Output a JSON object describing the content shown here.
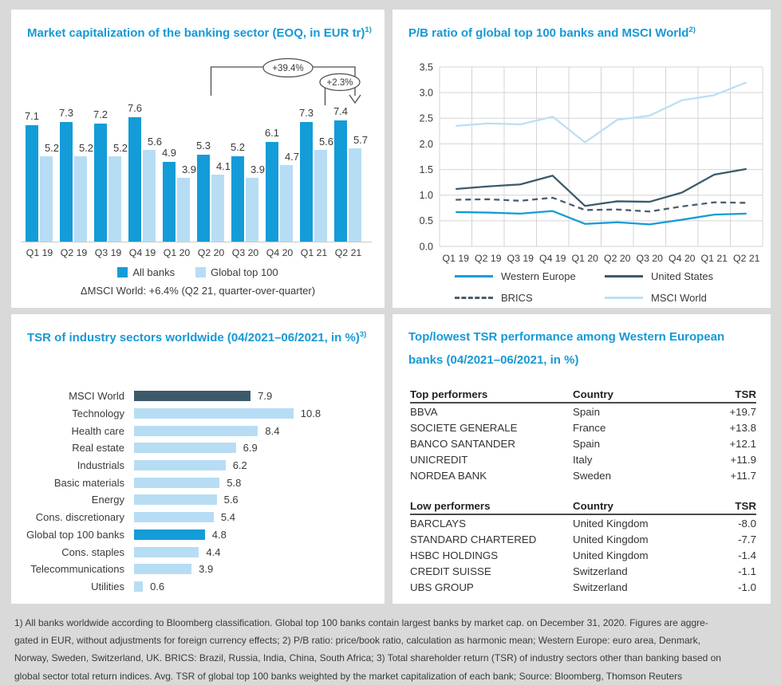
{
  "colors": {
    "accent_blue": "#149CD8",
    "light_blue": "#B7DDF4",
    "dark_navy": "#3D5A6B",
    "brics_gray": "#4A5D6C",
    "msci_light": "#BCDFF4",
    "grid_gray": "#D4D4D4",
    "axis_gray": "#C9C9C9",
    "annotation_gray": "#4D4D4D",
    "title_blue": "#1699D6",
    "text_dark": "#3A3A3A",
    "page_bg": "#D9D9D9",
    "panel_bg": "#FFFFFF"
  },
  "chart_data": [
    {
      "id": "market_cap",
      "type": "bar",
      "title": "Market capitalization of the banking sector (EOQ, in EUR tr)",
      "sup": "1)",
      "categories": [
        "Q1 19",
        "Q2 19",
        "Q3 19",
        "Q4 19",
        "Q1 20",
        "Q2 20",
        "Q3 20",
        "Q4 20",
        "Q1 21",
        "Q2 21"
      ],
      "series": [
        {
          "name": "All banks",
          "color_key": "accent_blue",
          "values": [
            7.1,
            7.3,
            7.2,
            7.6,
            4.9,
            5.3,
            5.2,
            6.1,
            7.3,
            7.4
          ]
        },
        {
          "name": "Global top 100",
          "color_key": "light_blue",
          "values": [
            5.2,
            5.2,
            5.2,
            5.6,
            3.9,
            4.1,
            3.9,
            4.7,
            5.6,
            5.7
          ]
        }
      ],
      "annotations": [
        {
          "label": "+39.4%",
          "from": "Q2 20",
          "to": "Q2 21"
        },
        {
          "label": "+2.3%",
          "from": "Q1 21",
          "to": "Q2 21"
        }
      ],
      "note": "ΔMSCI World: +6.4% (Q2 21, quarter-over-quarter)",
      "ylim": [
        0,
        8.5
      ],
      "grid": false,
      "legend_position": "bottom"
    },
    {
      "id": "pb_ratio",
      "type": "line",
      "title": "P/B ratio of global top 100 banks and MSCI World",
      "sup": "2)",
      "x": [
        "Q1 19",
        "Q2 19",
        "Q3 19",
        "Q4 19",
        "Q1 20",
        "Q2 20",
        "Q3 20",
        "Q4 20",
        "Q1 21",
        "Q2 21"
      ],
      "series": [
        {
          "name": "Western Europe",
          "color_key": "accent_blue",
          "dash": false,
          "values": [
            0.67,
            0.66,
            0.64,
            0.69,
            0.44,
            0.47,
            0.43,
            0.52,
            0.62,
            0.64
          ]
        },
        {
          "name": "United States",
          "color_key": "dark_navy",
          "dash": false,
          "values": [
            1.12,
            1.17,
            1.21,
            1.38,
            0.79,
            0.88,
            0.87,
            1.05,
            1.4,
            1.51
          ]
        },
        {
          "name": "BRICS",
          "color_key": "brics_gray",
          "dash": true,
          "values": [
            0.91,
            0.92,
            0.89,
            0.95,
            0.71,
            0.72,
            0.68,
            0.78,
            0.86,
            0.85
          ]
        },
        {
          "name": "MSCI World",
          "color_key": "msci_light",
          "dash": false,
          "values": [
            2.35,
            2.4,
            2.38,
            2.53,
            2.03,
            2.47,
            2.55,
            2.85,
            2.95,
            3.2
          ]
        }
      ],
      "ylim": [
        0.0,
        3.5
      ],
      "ytick_step": 0.5,
      "grid": true,
      "legend_position": "bottom"
    },
    {
      "id": "tsr_sectors",
      "type": "bar",
      "orientation": "horizontal",
      "title": "TSR of industry sectors worldwide (04/2021–06/2021, in %)",
      "sup": "3)",
      "categories": [
        "MSCI World",
        "Technology",
        "Health care",
        "Real estate",
        "Industrials",
        "Basic materials",
        "Energy",
        "Cons. discretionary",
        "Global top 100 banks",
        "Cons. staples",
        "Telecommunications",
        "Utilities"
      ],
      "values": [
        7.9,
        10.8,
        8.4,
        6.9,
        6.2,
        5.8,
        5.6,
        5.4,
        4.8,
        4.4,
        3.9,
        0.6
      ],
      "bar_color_keys": [
        "dark_navy",
        "light_blue",
        "light_blue",
        "light_blue",
        "light_blue",
        "light_blue",
        "light_blue",
        "light_blue",
        "accent_blue",
        "light_blue",
        "light_blue",
        "light_blue"
      ],
      "grid": false
    },
    {
      "id": "tsr_banks",
      "type": "table",
      "title": "Top/lowest TSR performance among Western European banks (04/2021–06/2021, in %)",
      "title_lines": [
        "Top/lowest TSR performance among Western European",
        "banks (04/2021–06/2021, in %)"
      ],
      "tables": [
        {
          "headers": [
            "Top performers",
            "Country",
            "TSR"
          ],
          "rows": [
            [
              "BBVA",
              "Spain",
              "+19.7"
            ],
            [
              "SOCIETE GENERALE",
              "France",
              "+13.8"
            ],
            [
              "BANCO SANTANDER",
              "Spain",
              "+12.1"
            ],
            [
              "UNICREDIT",
              "Italy",
              "+11.9"
            ],
            [
              "NORDEA BANK",
              "Sweden",
              "+11.7"
            ]
          ]
        },
        {
          "headers": [
            "Low performers",
            "Country",
            "TSR"
          ],
          "rows": [
            [
              "BARCLAYS",
              "United Kingdom",
              "-8.0"
            ],
            [
              "STANDARD CHARTERED",
              "United Kingdom",
              "-7.7"
            ],
            [
              "HSBC HOLDINGS",
              "United Kingdom",
              "-1.4"
            ],
            [
              "CREDIT SUISSE",
              "Switzerland",
              "-1.1"
            ],
            [
              "UBS GROUP",
              "Switzerland",
              "-1.0"
            ]
          ]
        }
      ]
    }
  ],
  "footnote": {
    "lines": [
      "1) All banks worldwide according to Bloomberg classification. Global top 100 banks contain largest banks by market cap. on December 31, 2020. Figures are aggre-",
      "gated in EUR, without adjustments for foreign currency effects; 2) P/B ratio: price/book ratio, calculation as harmonic mean; Western Europe: euro area, Denmark,",
      "Norway, Sweden, Switzerland, UK. BRICS: Brazil, Russia, India, China, South Africa; 3) Total shareholder return (TSR) of industry sectors other than banking based on",
      "global sector total return indices. Avg. TSR of global top 100 banks weighted by the market capitalization of each bank; Source: Bloomberg, Thomson Reuters"
    ]
  }
}
